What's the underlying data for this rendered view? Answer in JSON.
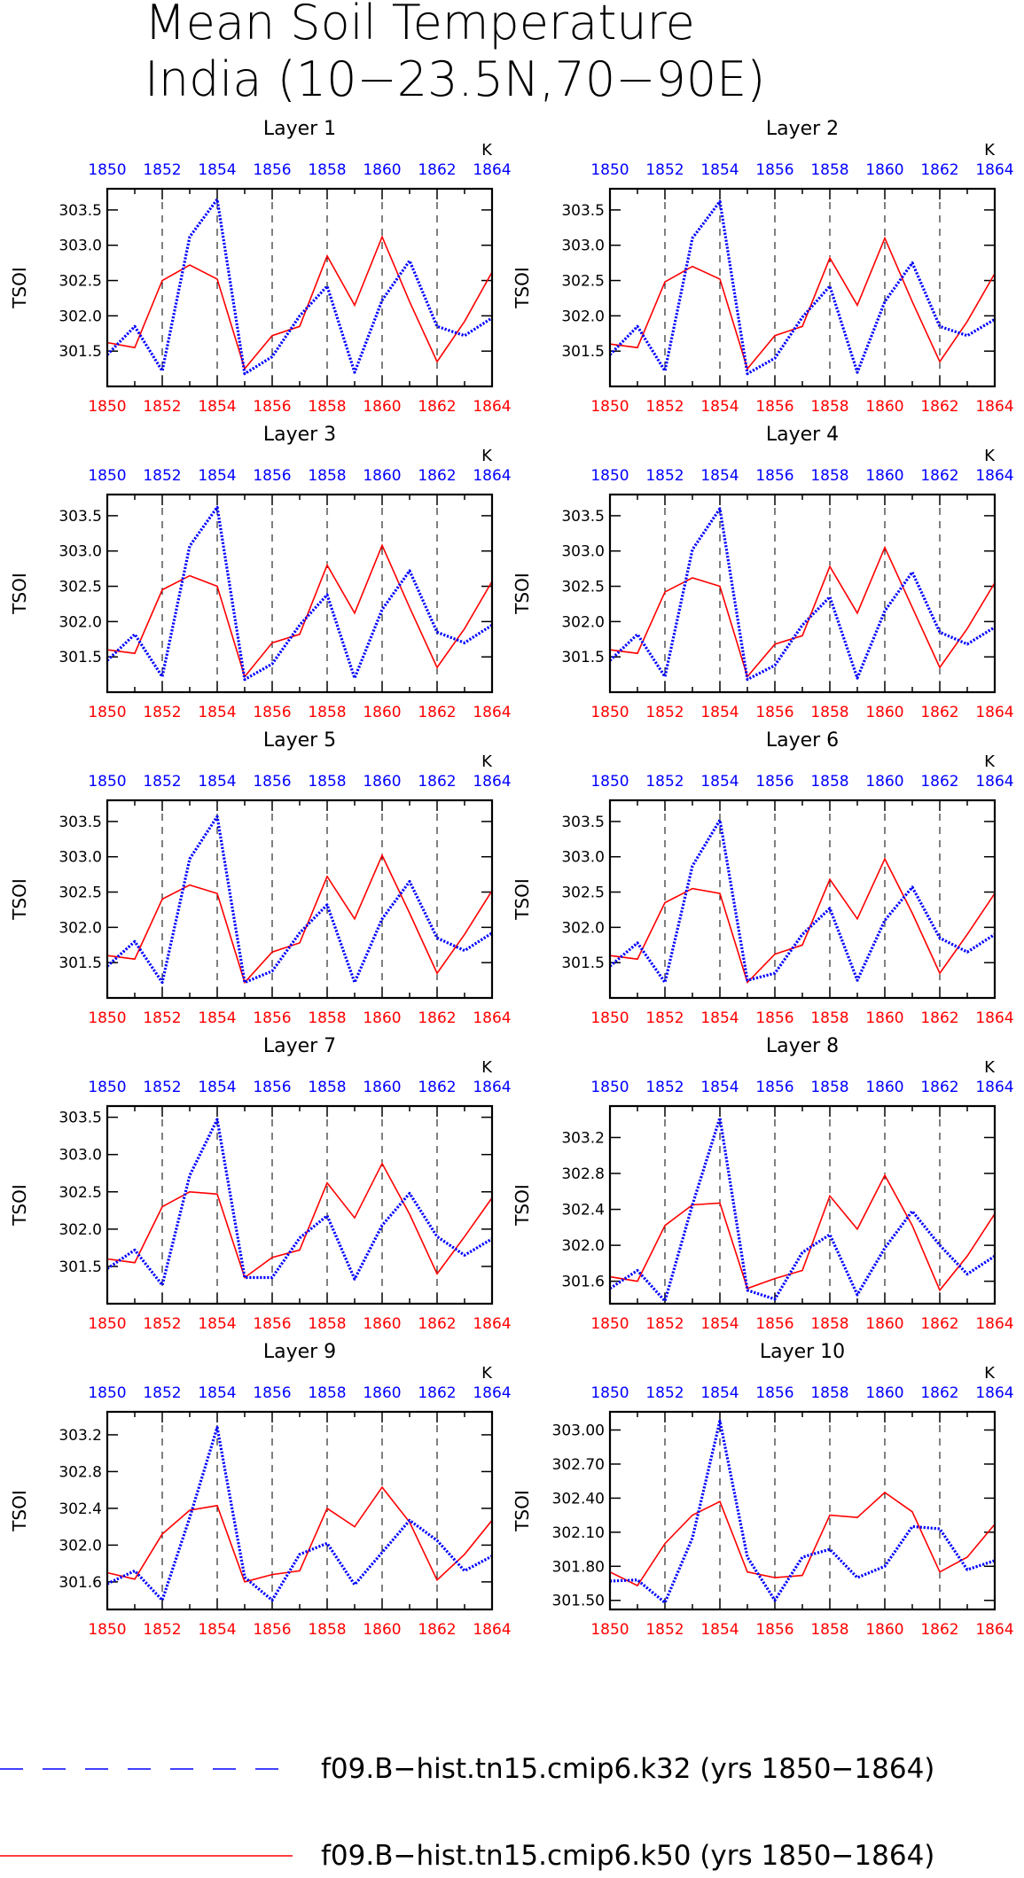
{
  "page": {
    "title_line1": "Mean Soil Temperature",
    "title_line2": "India (10−23.5N,70−90E)"
  },
  "colors": {
    "k32": "#0000ff",
    "k50": "#ff0000",
    "axis": "#000000",
    "background": "#ffffff"
  },
  "legend": {
    "position": "bottom",
    "entries": [
      {
        "label": "f09.B−hist.tn15.cmip6.k32 (yrs 1850−1864)",
        "color": "#0000ff",
        "style": "dashed"
      },
      {
        "label": "f09.B−hist.tn15.cmip6.k50 (yrs 1850−1864)",
        "color": "#ff0000",
        "style": "solid"
      }
    ]
  },
  "chart_data": [
    {
      "type": "line",
      "title": "Layer 1",
      "ylabel": "TSOI",
      "unit": "K",
      "x": [
        1850,
        1851,
        1852,
        1853,
        1854,
        1855,
        1856,
        1857,
        1858,
        1859,
        1860,
        1861,
        1862,
        1863,
        1864
      ],
      "xticks": [
        "1850",
        "1852",
        "1854",
        "1856",
        "1858",
        "1860",
        "1862",
        "1864"
      ],
      "xlim": [
        1850,
        1864
      ],
      "ylim": [
        301.0,
        303.8
      ],
      "yticks": [
        "301.5",
        "302.0",
        "302.5",
        "303.0",
        "303.5"
      ],
      "series": [
        {
          "name": "f09.B−hist.tn15.cmip6.k32 (yrs 1850−1864)",
          "color": "#0000ff",
          "style": "dashed",
          "values": [
            301.45,
            301.85,
            301.22,
            303.12,
            303.65,
            301.18,
            301.42,
            302.0,
            302.42,
            301.2,
            302.22,
            302.78,
            301.85,
            301.72,
            301.97
          ]
        },
        {
          "name": "f09.B−hist.tn15.cmip6.k50 (yrs 1850−1864)",
          "color": "#ff0000",
          "style": "solid",
          "values": [
            301.62,
            301.55,
            302.5,
            302.72,
            302.52,
            301.25,
            301.72,
            301.85,
            302.85,
            302.15,
            303.12,
            302.2,
            301.35,
            301.92,
            302.62
          ]
        }
      ]
    },
    {
      "type": "line",
      "title": "Layer 2",
      "ylabel": "TSOI",
      "unit": "K",
      "x": [
        1850,
        1851,
        1852,
        1853,
        1854,
        1855,
        1856,
        1857,
        1858,
        1859,
        1860,
        1861,
        1862,
        1863,
        1864
      ],
      "xticks": [
        "1850",
        "1852",
        "1854",
        "1856",
        "1858",
        "1860",
        "1862",
        "1864"
      ],
      "xlim": [
        1850,
        1864
      ],
      "ylim": [
        301.0,
        303.8
      ],
      "yticks": [
        "301.5",
        "302.0",
        "302.5",
        "303.0",
        "303.5"
      ],
      "series": [
        {
          "name": "f09.B−hist.tn15.cmip6.k32 (yrs 1850−1864)",
          "color": "#0000ff",
          "style": "dashed",
          "values": [
            301.45,
            301.85,
            301.22,
            303.1,
            303.62,
            301.18,
            301.4,
            301.98,
            302.42,
            301.2,
            302.2,
            302.75,
            301.85,
            301.72,
            301.95
          ]
        },
        {
          "name": "f09.B−hist.tn15.cmip6.k50 (yrs 1850−1864)",
          "color": "#ff0000",
          "style": "solid",
          "values": [
            301.6,
            301.55,
            302.48,
            302.7,
            302.52,
            301.25,
            301.72,
            301.85,
            302.82,
            302.15,
            303.1,
            302.2,
            301.35,
            301.92,
            302.6
          ]
        }
      ]
    },
    {
      "type": "line",
      "title": "Layer 3",
      "ylabel": "TSOI",
      "unit": "K",
      "x": [
        1850,
        1851,
        1852,
        1853,
        1854,
        1855,
        1856,
        1857,
        1858,
        1859,
        1860,
        1861,
        1862,
        1863,
        1864
      ],
      "xticks": [
        "1850",
        "1852",
        "1854",
        "1856",
        "1858",
        "1860",
        "1862",
        "1864"
      ],
      "xlim": [
        1850,
        1864
      ],
      "ylim": [
        301.0,
        303.8
      ],
      "yticks": [
        "301.5",
        "302.0",
        "302.5",
        "303.0",
        "303.5"
      ],
      "series": [
        {
          "name": "f09.B−hist.tn15.cmip6.k32 (yrs 1850−1864)",
          "color": "#0000ff",
          "style": "dashed",
          "values": [
            301.45,
            301.82,
            301.22,
            303.07,
            303.62,
            301.18,
            301.4,
            301.95,
            302.38,
            301.2,
            302.17,
            302.72,
            301.85,
            301.7,
            301.95
          ]
        },
        {
          "name": "f09.B−hist.tn15.cmip6.k50 (yrs 1850−1864)",
          "color": "#ff0000",
          "style": "solid",
          "values": [
            301.6,
            301.55,
            302.45,
            302.65,
            302.5,
            301.22,
            301.7,
            301.82,
            302.8,
            302.12,
            303.08,
            302.2,
            301.35,
            301.9,
            302.57
          ]
        }
      ]
    },
    {
      "type": "line",
      "title": "Layer 4",
      "ylabel": "TSOI",
      "unit": "K",
      "x": [
        1850,
        1851,
        1852,
        1853,
        1854,
        1855,
        1856,
        1857,
        1858,
        1859,
        1860,
        1861,
        1862,
        1863,
        1864
      ],
      "xticks": [
        "1850",
        "1852",
        "1854",
        "1856",
        "1858",
        "1860",
        "1862",
        "1864"
      ],
      "xlim": [
        1850,
        1864
      ],
      "ylim": [
        301.0,
        303.8
      ],
      "yticks": [
        "301.5",
        "302.0",
        "302.5",
        "303.0",
        "303.5"
      ],
      "series": [
        {
          "name": "f09.B−hist.tn15.cmip6.k32 (yrs 1850−1864)",
          "color": "#0000ff",
          "style": "dashed",
          "values": [
            301.45,
            301.82,
            301.22,
            303.02,
            303.6,
            301.18,
            301.38,
            301.95,
            302.35,
            301.2,
            302.15,
            302.7,
            301.85,
            301.68,
            301.92
          ]
        },
        {
          "name": "f09.B−hist.tn15.cmip6.k50 (yrs 1850−1864)",
          "color": "#ff0000",
          "style": "solid",
          "values": [
            301.6,
            301.55,
            302.42,
            302.62,
            302.5,
            301.22,
            301.68,
            301.8,
            302.78,
            302.12,
            303.05,
            302.2,
            301.35,
            301.9,
            302.55
          ]
        }
      ]
    },
    {
      "type": "line",
      "title": "Layer 5",
      "ylabel": "TSOI",
      "unit": "K",
      "x": [
        1850,
        1851,
        1852,
        1853,
        1854,
        1855,
        1856,
        1857,
        1858,
        1859,
        1860,
        1861,
        1862,
        1863,
        1864
      ],
      "xticks": [
        "1850",
        "1852",
        "1854",
        "1856",
        "1858",
        "1860",
        "1862",
        "1864"
      ],
      "xlim": [
        1850,
        1864
      ],
      "ylim": [
        301.0,
        303.8
      ],
      "yticks": [
        "301.5",
        "302.0",
        "302.5",
        "303.0",
        "303.5"
      ],
      "series": [
        {
          "name": "f09.B−hist.tn15.cmip6.k32 (yrs 1850−1864)",
          "color": "#0000ff",
          "style": "dashed",
          "values": [
            301.45,
            301.8,
            301.22,
            302.97,
            303.57,
            301.22,
            301.38,
            301.92,
            302.32,
            301.22,
            302.12,
            302.65,
            301.85,
            301.67,
            301.92
          ]
        },
        {
          "name": "f09.B−hist.tn15.cmip6.k50 (yrs 1850−1864)",
          "color": "#ff0000",
          "style": "solid",
          "values": [
            301.6,
            301.55,
            302.4,
            302.6,
            302.48,
            301.22,
            301.65,
            301.78,
            302.72,
            302.12,
            303.02,
            302.2,
            301.35,
            301.9,
            302.52
          ]
        }
      ]
    },
    {
      "type": "line",
      "title": "Layer 6",
      "ylabel": "TSOI",
      "unit": "K",
      "x": [
        1850,
        1851,
        1852,
        1853,
        1854,
        1855,
        1856,
        1857,
        1858,
        1859,
        1860,
        1861,
        1862,
        1863,
        1864
      ],
      "xticks": [
        "1850",
        "1852",
        "1854",
        "1856",
        "1858",
        "1860",
        "1862",
        "1864"
      ],
      "xlim": [
        1850,
        1864
      ],
      "ylim": [
        301.0,
        303.8
      ],
      "yticks": [
        "301.5",
        "302.0",
        "302.5",
        "303.0",
        "303.5"
      ],
      "series": [
        {
          "name": "f09.B−hist.tn15.cmip6.k32 (yrs 1850−1864)",
          "color": "#0000ff",
          "style": "dashed",
          "values": [
            301.45,
            301.78,
            301.22,
            302.87,
            303.52,
            301.25,
            301.35,
            301.9,
            302.27,
            301.25,
            302.1,
            302.57,
            301.85,
            301.65,
            301.9
          ]
        },
        {
          "name": "f09.B−hist.tn15.cmip6.k50 (yrs 1850−1864)",
          "color": "#ff0000",
          "style": "solid",
          "values": [
            301.6,
            301.55,
            302.35,
            302.55,
            302.48,
            301.22,
            301.62,
            301.75,
            302.68,
            302.12,
            302.97,
            302.2,
            301.35,
            301.9,
            302.48
          ]
        }
      ]
    },
    {
      "type": "line",
      "title": "Layer 7",
      "ylabel": "TSOI",
      "unit": "K",
      "x": [
        1850,
        1851,
        1852,
        1853,
        1854,
        1855,
        1856,
        1857,
        1858,
        1859,
        1860,
        1861,
        1862,
        1863,
        1864
      ],
      "xticks": [
        "1850",
        "1852",
        "1854",
        "1856",
        "1858",
        "1860",
        "1862",
        "1864"
      ],
      "xlim": [
        1850,
        1864
      ],
      "ylim": [
        301.0,
        303.65
      ],
      "yticks": [
        "301.5",
        "302.0",
        "302.5",
        "303.0",
        "303.5"
      ],
      "series": [
        {
          "name": "f09.B−hist.tn15.cmip6.k32 (yrs 1850−1864)",
          "color": "#0000ff",
          "style": "dashed",
          "values": [
            301.47,
            301.72,
            301.25,
            302.72,
            303.47,
            301.35,
            301.35,
            301.88,
            302.18,
            301.33,
            302.05,
            302.48,
            301.9,
            301.65,
            301.87
          ]
        },
        {
          "name": "f09.B−hist.tn15.cmip6.k50 (yrs 1850−1864)",
          "color": "#ff0000",
          "style": "solid",
          "values": [
            301.6,
            301.55,
            302.3,
            302.5,
            302.47,
            301.35,
            301.62,
            301.72,
            302.62,
            302.15,
            302.88,
            302.2,
            301.4,
            301.9,
            302.42
          ]
        }
      ]
    },
    {
      "type": "line",
      "title": "Layer 8",
      "ylabel": "TSOI",
      "unit": "K",
      "x": [
        1850,
        1851,
        1852,
        1853,
        1854,
        1855,
        1856,
        1857,
        1858,
        1859,
        1860,
        1861,
        1862,
        1863,
        1864
      ],
      "xticks": [
        "1850",
        "1852",
        "1854",
        "1856",
        "1858",
        "1860",
        "1862",
        "1864"
      ],
      "xlim": [
        1850,
        1864
      ],
      "ylim": [
        301.35,
        303.55
      ],
      "yticks": [
        "301.6",
        "302.0",
        "302.4",
        "302.8",
        "303.2"
      ],
      "series": [
        {
          "name": "f09.B−hist.tn15.cmip6.k32 (yrs 1850−1864)",
          "color": "#0000ff",
          "style": "dashed",
          "values": [
            301.52,
            301.72,
            301.38,
            302.45,
            303.42,
            301.5,
            301.4,
            301.92,
            302.12,
            301.45,
            301.97,
            302.38,
            302.0,
            301.68,
            301.88
          ]
        },
        {
          "name": "f09.B−hist.tn15.cmip6.k50 (yrs 1850−1864)",
          "color": "#ff0000",
          "style": "solid",
          "values": [
            301.65,
            301.6,
            302.22,
            302.45,
            302.47,
            301.52,
            301.63,
            301.72,
            302.55,
            302.18,
            302.78,
            302.22,
            301.5,
            301.88,
            302.35
          ]
        }
      ]
    },
    {
      "type": "line",
      "title": "Layer 9",
      "ylabel": "TSOI",
      "unit": "K",
      "x": [
        1850,
        1851,
        1852,
        1853,
        1854,
        1855,
        1856,
        1857,
        1858,
        1859,
        1860,
        1861,
        1862,
        1863,
        1864
      ],
      "xticks": [
        "1850",
        "1852",
        "1854",
        "1856",
        "1858",
        "1860",
        "1862",
        "1864"
      ],
      "xlim": [
        1850,
        1864
      ],
      "ylim": [
        301.3,
        303.45
      ],
      "yticks": [
        "301.6",
        "302.0",
        "302.4",
        "302.8",
        "303.2"
      ],
      "series": [
        {
          "name": "f09.B−hist.tn15.cmip6.k32 (yrs 1850−1864)",
          "color": "#0000ff",
          "style": "dashed",
          "values": [
            301.58,
            301.72,
            301.4,
            302.3,
            303.28,
            301.65,
            301.4,
            301.9,
            302.02,
            301.57,
            301.92,
            302.27,
            302.05,
            301.72,
            301.88
          ]
        },
        {
          "name": "f09.B−hist.tn15.cmip6.k50 (yrs 1850−1864)",
          "color": "#ff0000",
          "style": "solid",
          "values": [
            301.7,
            301.63,
            302.12,
            302.38,
            302.43,
            301.6,
            301.68,
            301.72,
            302.4,
            302.2,
            302.63,
            302.25,
            301.62,
            301.9,
            302.27
          ]
        }
      ]
    },
    {
      "type": "line",
      "title": "Layer 10",
      "ylabel": "TSOI",
      "unit": "K",
      "x": [
        1850,
        1851,
        1852,
        1853,
        1854,
        1855,
        1856,
        1857,
        1858,
        1859,
        1860,
        1861,
        1862,
        1863,
        1864
      ],
      "xticks": [
        "1850",
        "1852",
        "1854",
        "1856",
        "1858",
        "1860",
        "1862",
        "1864"
      ],
      "xlim": [
        1850,
        1864
      ],
      "ylim": [
        301.42,
        303.16
      ],
      "yticks": [
        "301.50",
        "301.80",
        "302.10",
        "302.40",
        "302.70",
        "303.00"
      ],
      "series": [
        {
          "name": "f09.B−hist.tn15.cmip6.k32 (yrs 1850−1864)",
          "color": "#0000ff",
          "style": "dashed",
          "values": [
            301.67,
            301.68,
            301.48,
            302.05,
            303.08,
            301.88,
            301.5,
            301.88,
            301.95,
            301.7,
            301.8,
            302.15,
            302.13,
            301.77,
            301.85
          ]
        },
        {
          "name": "f09.B−hist.tn15.cmip6.k50 (yrs 1850−1864)",
          "color": "#ff0000",
          "style": "solid",
          "values": [
            301.75,
            301.63,
            302.0,
            302.25,
            302.37,
            301.75,
            301.7,
            301.72,
            302.25,
            302.23,
            302.45,
            302.28,
            301.75,
            301.88,
            302.17
          ]
        }
      ]
    }
  ]
}
